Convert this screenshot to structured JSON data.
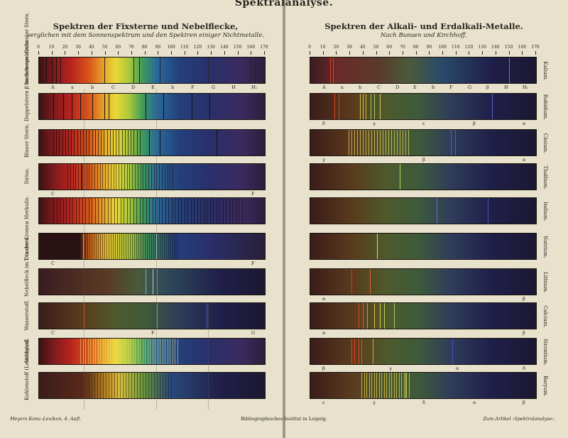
{
  "top_title": "Spektralanalyse.",
  "left_page": {
    "heading": "Spektren der Fixsterne und Nebelflecke,",
    "subheading": "verglichen mit dem Sonnenspektrum und den Spektren einiger Nichtmetalle.",
    "scale_labels": [
      "0",
      "10",
      "20",
      "30",
      "40",
      "50",
      "60",
      "70",
      "80",
      "90",
      "100",
      "110",
      "120",
      "130",
      "140",
      "150",
      "160",
      "170"
    ],
    "spectra": [
      {
        "label": "Sonnen-spektrum.",
        "kind": "solar",
        "marks": [
          "A",
          "a",
          "b",
          "C",
          "D",
          "E",
          "b",
          "F",
          "G",
          "H",
          "H₁"
        ]
      },
      {
        "label": "Doppelstern β im Schwan. Gelbroter Stern.",
        "kind": "yellow"
      },
      {
        "label": "Blauer Stern.",
        "kind": "blue"
      },
      {
        "label": "Sirius.",
        "kind": "sirius",
        "marks": [
          "C",
          "F"
        ]
      },
      {
        "label": "α Herkulis.",
        "kind": "herc"
      },
      {
        "label": "T in der Krone.",
        "kind": "tcr",
        "marks": [
          "C",
          "F"
        ]
      },
      {
        "label": "Nebelfleck im Drachen.",
        "kind": "nebula"
      },
      {
        "label": "Wasserstoff.",
        "kind": "hydrogen",
        "marks": [
          "C",
          "F",
          "G"
        ]
      },
      {
        "label": "Stickstoff.",
        "kind": "nitrogen"
      },
      {
        "label": "Kohlenstoff (Leuchtgas).",
        "kind": "carbon"
      }
    ]
  },
  "right_page": {
    "heading": "Spektren der Alkali- und Erdalkali-Metalle.",
    "subheading": "Nach Bunsen und Kirchhoff.",
    "scale_labels": [
      "0",
      "10",
      "20",
      "30",
      "40",
      "50",
      "60",
      "70",
      "80",
      "90",
      "100",
      "110",
      "120",
      "130",
      "140",
      "150",
      "160",
      "170"
    ],
    "spectra": [
      {
        "label": "Kalium.",
        "kind": "potassium",
        "marks": [
          "A",
          "a",
          "b",
          "C",
          "D",
          "E",
          "b",
          "F",
          "G",
          "β",
          "H",
          "H₁"
        ]
      },
      {
        "label": "Rubidium.",
        "kind": "rubidium",
        "marks": [
          "δ",
          "γ",
          "ε",
          "β",
          "α"
        ]
      },
      {
        "label": "Cäsium.",
        "kind": "caesium",
        "marks": [
          "γ",
          "β",
          "α"
        ]
      },
      {
        "label": "Thallium.",
        "kind": "thallium"
      },
      {
        "label": "Indium.",
        "kind": "indium"
      },
      {
        "label": "Natrium.",
        "kind": "sodium"
      },
      {
        "label": "Lithium.",
        "kind": "lithium",
        "marks": [
          "α",
          "β"
        ]
      },
      {
        "label": "Calcium.",
        "kind": "calcium",
        "marks": [
          "α",
          "β"
        ]
      },
      {
        "label": "Strontium.",
        "kind": "strontium",
        "marks": [
          "β",
          "γ",
          "α",
          "δ"
        ]
      },
      {
        "label": "Baryum.",
        "kind": "barium",
        "marks": [
          "ε",
          "γ",
          "δ",
          "α",
          "β"
        ]
      }
    ]
  },
  "footer": {
    "left": "Meyers Konv.-Lexikon, 4. Aufl.",
    "center": "Bibliographisches Institut in Leipzig.",
    "right": "Zum Artikel ›Spektralanalyse‹."
  },
  "colors": {
    "paper": "#e8e2cc",
    "ink": "#2a2420"
  }
}
